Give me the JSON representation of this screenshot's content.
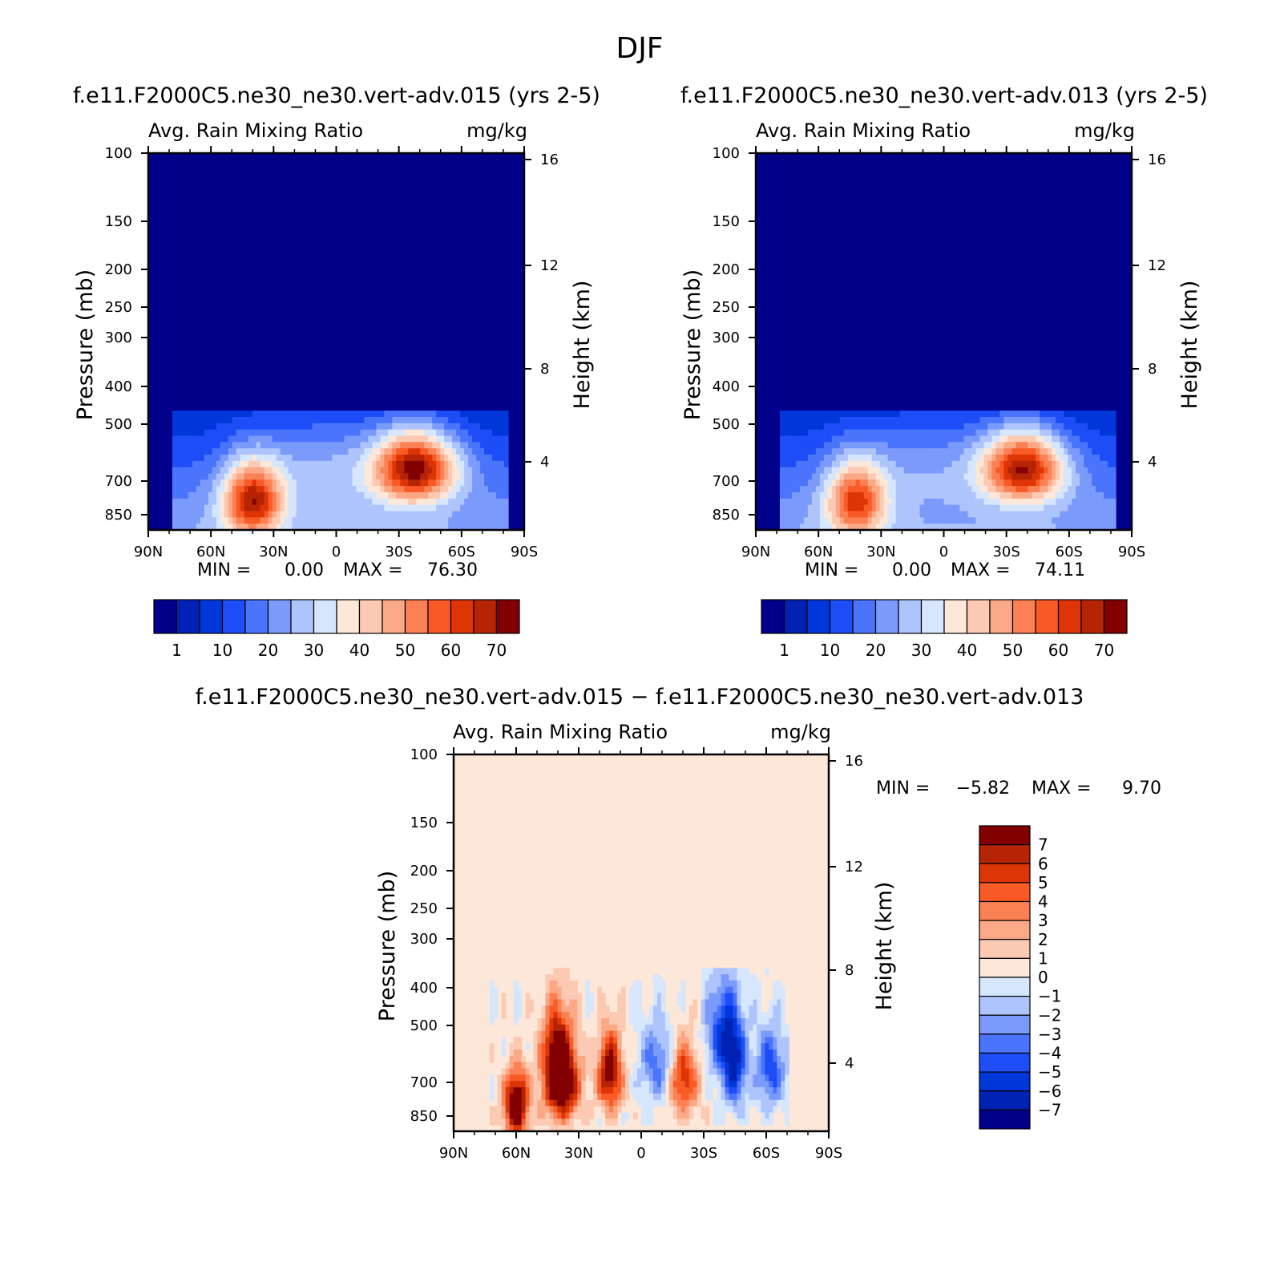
{
  "title": "DJF",
  "colors": {
    "seq": [
      "#00008b",
      "#0022b4",
      "#0037d9",
      "#1d4df7",
      "#4a74fb",
      "#7a9bfb",
      "#aec4fc",
      "#d5e6fd",
      "#fde7d8",
      "#fcc9b2",
      "#fba886",
      "#fb8155",
      "#fa5a25",
      "#dd3506",
      "#b52505",
      "#830000"
    ],
    "diff": [
      "#00008b",
      "#0022b4",
      "#0037d9",
      "#1d4df7",
      "#4a74fb",
      "#7a9bfb",
      "#aec4fc",
      "#d5e6fd",
      "#fde7d8",
      "#fcc9b2",
      "#fba886",
      "#fb8155",
      "#fa5a25",
      "#dd3506",
      "#b52505",
      "#830000"
    ],
    "background_diff": "#fde7d8"
  },
  "chart_data": [
    {
      "type": "heatmap",
      "id": "case1",
      "title": "f.e11.F2000C5.ne30_ne30.vert-adv.015 (yrs 2-5)",
      "variable": "Avg. Rain Mixing Ratio",
      "units": "mg/kg",
      "ylabel": "Pressure (mb)",
      "ylabel_right": "Height (km)",
      "x_ticks": [
        "90N",
        "60N",
        "30N",
        "0",
        "30S",
        "60S",
        "90S"
      ],
      "y_ticks": [
        "100",
        "150",
        "200",
        "250",
        "300",
        "400",
        "500",
        "700",
        "850"
      ],
      "y_ticks_right": [
        "16",
        "12",
        "8",
        "4"
      ],
      "min_label": "MIN =",
      "min_value": "0.00",
      "max_label": "MAX =",
      "max_value": "76.30",
      "levels": [
        "1",
        "10",
        "20",
        "30",
        "40",
        "50",
        "60",
        "70"
      ],
      "features": [
        {
          "lat": 40,
          "p": 860,
          "value": 68
        },
        {
          "lat": -38,
          "p": 705,
          "value": 76.3
        },
        {
          "lat": 5,
          "p": 690,
          "value": 32
        }
      ]
    },
    {
      "type": "heatmap",
      "id": "case2",
      "title": "f.e11.F2000C5.ne30_ne30.vert-adv.013 (yrs 2-5)",
      "variable": "Avg. Rain Mixing Ratio",
      "units": "mg/kg",
      "ylabel": "Pressure (mb)",
      "ylabel_right": "Height (km)",
      "x_ticks": [
        "90N",
        "60N",
        "30N",
        "0",
        "30S",
        "60S",
        "90S"
      ],
      "y_ticks": [
        "100",
        "150",
        "200",
        "250",
        "300",
        "400",
        "500",
        "700",
        "850"
      ],
      "y_ticks_right": [
        "16",
        "12",
        "8",
        "4"
      ],
      "min_label": "MIN =",
      "min_value": "0.00",
      "max_label": "MAX =",
      "max_value": "74.11",
      "levels": [
        "1",
        "10",
        "20",
        "30",
        "40",
        "50",
        "60",
        "70"
      ],
      "features": [
        {
          "lat": 42,
          "p": 860,
          "value": 62
        },
        {
          "lat": -38,
          "p": 705,
          "value": 74.1
        },
        {
          "lat": 8,
          "p": 690,
          "value": 28
        }
      ]
    },
    {
      "type": "heatmap",
      "id": "diff",
      "title": "f.e11.F2000C5.ne30_ne30.vert-adv.015 − f.e11.F2000C5.ne30_ne30.vert-adv.013",
      "variable": "Avg. Rain Mixing Ratio",
      "units": "mg/kg",
      "ylabel": "Pressure (mb)",
      "ylabel_right": "Height (km)",
      "x_ticks": [
        "90N",
        "60N",
        "30N",
        "0",
        "30S",
        "60S",
        "90S"
      ],
      "y_ticks": [
        "100",
        "150",
        "200",
        "250",
        "300",
        "400",
        "500",
        "700",
        "850"
      ],
      "y_ticks_right": [
        "16",
        "12",
        "8",
        "4"
      ],
      "min_label": "MIN =",
      "min_value": "−5.82",
      "max_label": "MAX =",
      "max_value": "9.70",
      "levels": [
        "7",
        "6",
        "5",
        "4",
        "3",
        "2",
        "1",
        "0",
        "−1",
        "−2",
        "−3",
        "−4",
        "−5",
        "−6",
        "−7"
      ],
      "features": [
        {
          "lat": 60,
          "p": 880,
          "value": 9.7
        },
        {
          "lat": 40,
          "p": 620,
          "value": 7
        },
        {
          "lat": 38,
          "p": 790,
          "value": 8
        },
        {
          "lat": 15,
          "p": 720,
          "value": 8
        },
        {
          "lat": -20,
          "p": 750,
          "value": 6
        },
        {
          "lat": -40,
          "p": 560,
          "value": -5.8
        },
        {
          "lat": -45,
          "p": 720,
          "value": -5
        },
        {
          "lat": -62,
          "p": 700,
          "value": -5
        },
        {
          "lat": -8,
          "p": 680,
          "value": -4
        }
      ]
    }
  ]
}
